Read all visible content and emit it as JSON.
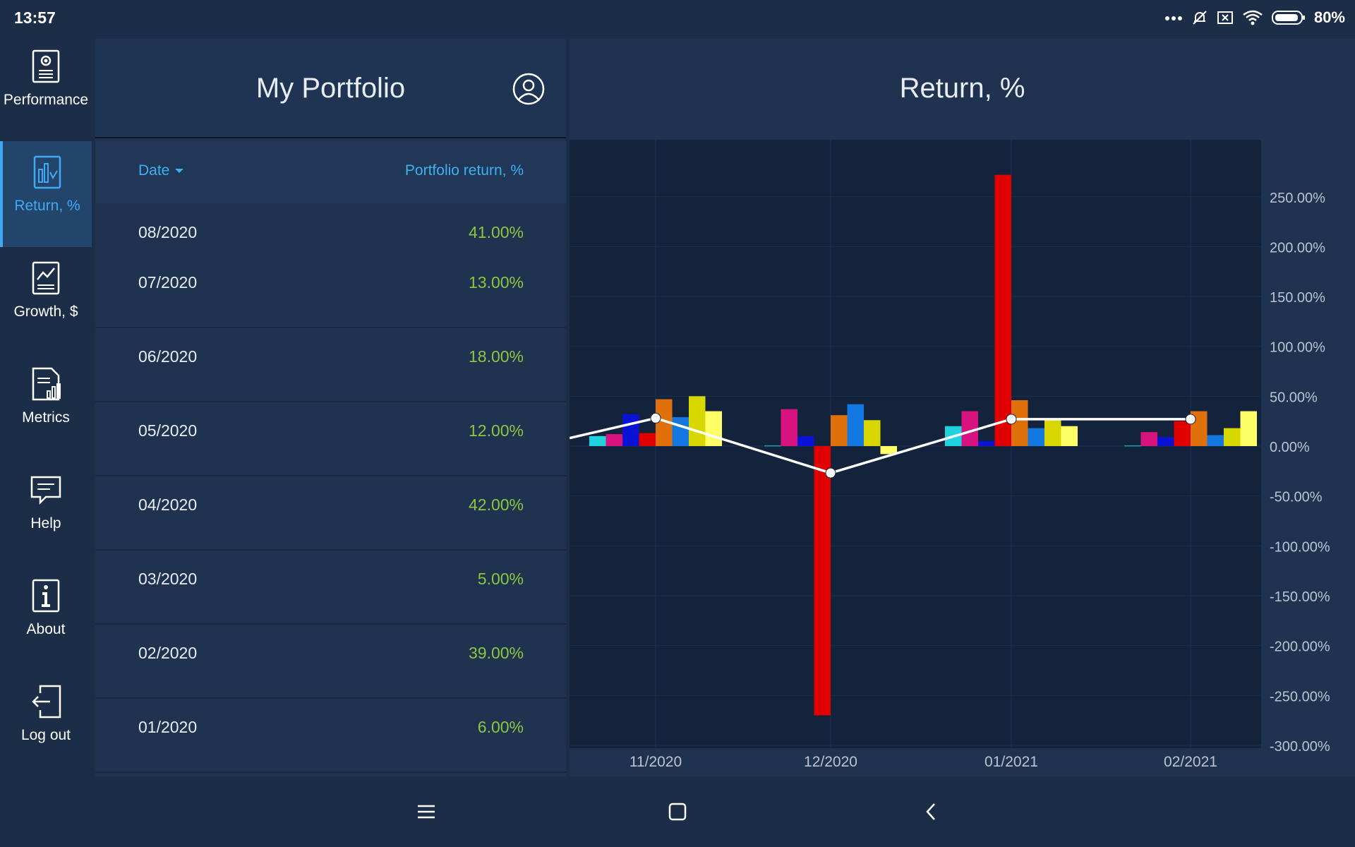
{
  "status_bar": {
    "time": "13:57",
    "battery": "80%"
  },
  "sidebar": {
    "items": [
      {
        "label": "Performance",
        "icon": "performance-icon"
      },
      {
        "label": "Return, %",
        "icon": "return-chart-icon",
        "active": true
      },
      {
        "label": "Growth, $",
        "icon": "growth-chart-icon"
      },
      {
        "label": "Metrics",
        "icon": "metrics-icon"
      },
      {
        "label": "Help",
        "icon": "help-chat-icon"
      },
      {
        "label": "About",
        "icon": "info-icon"
      },
      {
        "label": "Log out",
        "icon": "logout-icon"
      }
    ]
  },
  "portfolio": {
    "title": "My Portfolio",
    "columns": {
      "date": "Date",
      "return": "Portfolio return, %"
    },
    "rows": [
      {
        "date": "08/2020",
        "return": "41.00%"
      },
      {
        "date": "07/2020",
        "return": "13.00%"
      },
      {
        "date": "06/2020",
        "return": "18.00%"
      },
      {
        "date": "05/2020",
        "return": "12.00%"
      },
      {
        "date": "04/2020",
        "return": "42.00%"
      },
      {
        "date": "03/2020",
        "return": "5.00%"
      },
      {
        "date": "02/2020",
        "return": "39.00%"
      },
      {
        "date": "01/2020",
        "return": "6.00%"
      }
    ]
  },
  "chart": {
    "title": "Return, %"
  },
  "chart_data": {
    "type": "bar",
    "categories": [
      "11/2020",
      "12/2020",
      "01/2021",
      "02/2021"
    ],
    "y_tick_labels": [
      "250.00%",
      "200.00%",
      "150.00%",
      "100.00%",
      "50.00%",
      "0.00%",
      "-50.00%",
      "-100.00%",
      "-150.00%",
      "-200.00%",
      "-250.00%",
      "-300.00%"
    ],
    "ylim": [
      -300,
      270
    ],
    "grid": true,
    "y_axis_position": "right",
    "series": [
      {
        "color": "#1fd3de",
        "values": [
          10,
          0.5,
          20,
          0.5
        ]
      },
      {
        "color": "#d8127e",
        "values": [
          12,
          37,
          35,
          14
        ]
      },
      {
        "color": "#0a12d6",
        "values": [
          32,
          10,
          5,
          9
        ]
      },
      {
        "color": "#e00000",
        "values": [
          13,
          -270,
          272,
          25
        ]
      },
      {
        "color": "#e0700a",
        "values": [
          47,
          31,
          46,
          35
        ]
      },
      {
        "color": "#1277e0",
        "values": [
          29,
          42,
          18,
          11
        ]
      },
      {
        "color": "#d8d800",
        "values": [
          50,
          26,
          27,
          18
        ]
      },
      {
        "color": "#ffff66",
        "values": [
          35,
          -8,
          20,
          35
        ]
      }
    ],
    "line": {
      "color": "#ffffff",
      "values": [
        28,
        -27,
        27,
        27
      ]
    }
  }
}
